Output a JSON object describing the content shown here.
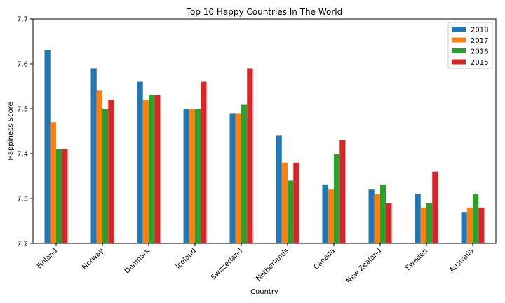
{
  "chart_data": {
    "type": "bar",
    "title": "Top 10 Happy Countries In The World",
    "xlabel": "Country",
    "ylabel": "Happiness Score",
    "ylim": [
      7.2,
      7.7
    ],
    "yticks": [
      "7.2",
      "7.3",
      "7.4",
      "7.5",
      "7.6",
      "7.7"
    ],
    "grid": false,
    "legend_position": "top-right",
    "categories": [
      "Finland",
      "Norway",
      "Denmark",
      "Iceland",
      "Switzerland",
      "Netherlands",
      "Canada",
      "New Zealand",
      "Sweden",
      "Australia"
    ],
    "series": [
      {
        "name": "2018",
        "color": "#1f77b4",
        "values": [
          7.63,
          7.59,
          7.56,
          7.5,
          7.49,
          7.44,
          7.33,
          7.32,
          7.31,
          7.27
        ]
      },
      {
        "name": "2017",
        "color": "#ff7f0e",
        "values": [
          7.47,
          7.54,
          7.52,
          7.5,
          7.49,
          7.38,
          7.32,
          7.31,
          7.28,
          7.28
        ]
      },
      {
        "name": "2016",
        "color": "#2ca02c",
        "values": [
          7.41,
          7.5,
          7.53,
          7.5,
          7.51,
          7.34,
          7.4,
          7.33,
          7.29,
          7.31
        ]
      },
      {
        "name": "2015",
        "color": "#d62728",
        "values": [
          7.41,
          7.52,
          7.53,
          7.56,
          7.59,
          7.38,
          7.43,
          7.29,
          7.36,
          7.28
        ]
      }
    ]
  }
}
